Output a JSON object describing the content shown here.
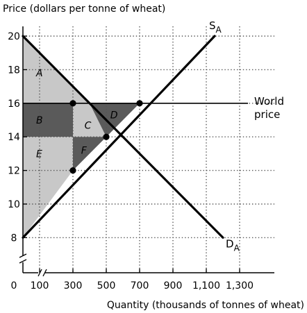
{
  "chart_data": {
    "type": "line",
    "ylabel": "Price (dollars per tonne of wheat)",
    "xlabel": "Quantity (thousands of tonnes of wheat)",
    "x_ticks": [
      100,
      300,
      500,
      700,
      900,
      1100,
      1300
    ],
    "x_tick_labels": [
      "100",
      "300",
      "500",
      "700",
      "900",
      "1,100",
      "1,300"
    ],
    "y_ticks": [
      8,
      10,
      12,
      14,
      16,
      18,
      20
    ],
    "y_tick_labels": [
      "8",
      "10",
      "12",
      "14",
      "16",
      "18",
      "20"
    ],
    "origin_label": "0",
    "xlim": [
      0,
      1300
    ],
    "ylim": [
      8,
      20
    ],
    "grid": true,
    "series": [
      {
        "name": "S",
        "sub": "A",
        "x": [
          0,
          1150
        ],
        "y": [
          8,
          20
        ]
      },
      {
        "name": "D",
        "sub": "A",
        "x": [
          0,
          1200
        ],
        "y": [
          20,
          8
        ]
      }
    ],
    "world_price": {
      "value": 16,
      "label_line1": "World",
      "label_line2": "price"
    },
    "points": [
      {
        "x": 300,
        "y": 16
      },
      {
        "x": 700,
        "y": 16
      },
      {
        "x": 500,
        "y": 14
      },
      {
        "x": 300,
        "y": 12
      }
    ],
    "regions": [
      {
        "label": "A",
        "shade": "light",
        "polygon": [
          [
            0,
            20
          ],
          [
            0,
            16
          ],
          [
            400,
            16
          ]
        ],
        "label_at": [
          100,
          17.8
        ]
      },
      {
        "label": "B",
        "shade": "dark",
        "polygon": [
          [
            0,
            16
          ],
          [
            300,
            16
          ],
          [
            300,
            14
          ],
          [
            0,
            14
          ]
        ],
        "label_at": [
          100,
          15.0
        ]
      },
      {
        "label": "C",
        "shade": "light",
        "polygon": [
          [
            300,
            16
          ],
          [
            400,
            16
          ],
          [
            500,
            14
          ],
          [
            300,
            14
          ]
        ],
        "label_at": [
          390,
          14.7
        ]
      },
      {
        "label": "D",
        "shade": "dark",
        "polygon": [
          [
            400,
            16
          ],
          [
            700,
            16
          ],
          [
            500,
            14
          ]
        ],
        "label_at": [
          545,
          15.3
        ]
      },
      {
        "label": "E",
        "shade": "light",
        "polygon": [
          [
            0,
            14
          ],
          [
            300,
            14
          ],
          [
            300,
            12
          ],
          [
            0,
            8
          ]
        ],
        "label_at": [
          100,
          13.0
        ]
      },
      {
        "label": "F",
        "shade": "dark",
        "polygon": [
          [
            300,
            14
          ],
          [
            500,
            14
          ],
          [
            300,
            12
          ]
        ],
        "label_at": [
          370,
          13.2
        ]
      }
    ],
    "colors": {
      "light": "#c8c8c8",
      "dark": "#5a5a5a",
      "line": "#000000",
      "grid": "#555555"
    }
  }
}
